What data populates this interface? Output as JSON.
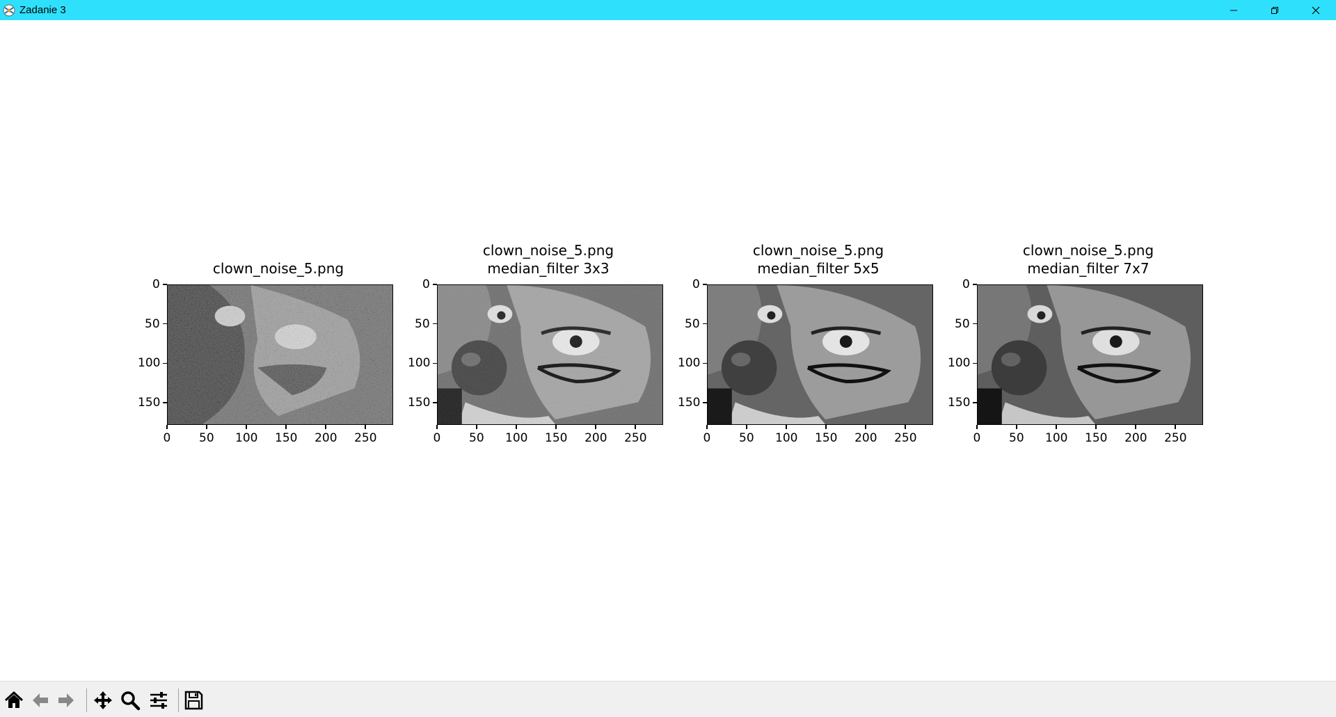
{
  "window": {
    "title": "Zadanie 3"
  },
  "subplots": [
    {
      "title_line1": "clown_noise_5.png",
      "title_line2": ""
    },
    {
      "title_line1": "clown_noise_5.png",
      "title_line2": "median_filter 3x3"
    },
    {
      "title_line1": "clown_noise_5.png",
      "title_line2": "median_filter 5x5"
    },
    {
      "title_line1": "clown_noise_5.png",
      "title_line2": "median_filter 7x7"
    }
  ],
  "chart_data": [
    {
      "type": "image",
      "title": "clown_noise_5.png",
      "xticks": [
        0,
        50,
        100,
        150,
        200,
        250
      ],
      "yticks": [
        0,
        50,
        100,
        150
      ],
      "xlim": [
        0,
        285
      ],
      "ylim": [
        178,
        0
      ]
    },
    {
      "type": "image",
      "title": "clown_noise_5.png\nmedian_filter 3x3",
      "xticks": [
        0,
        50,
        100,
        150,
        200,
        250
      ],
      "yticks": [
        0,
        50,
        100,
        150
      ],
      "xlim": [
        0,
        285
      ],
      "ylim": [
        178,
        0
      ]
    },
    {
      "type": "image",
      "title": "clown_noise_5.png\nmedian_filter 5x5",
      "xticks": [
        0,
        50,
        100,
        150,
        200,
        250
      ],
      "yticks": [
        0,
        50,
        100,
        150
      ],
      "xlim": [
        0,
        285
      ],
      "ylim": [
        178,
        0
      ]
    },
    {
      "type": "image",
      "title": "clown_noise_5.png\nmedian_filter 7x7",
      "xticks": [
        0,
        50,
        100,
        150,
        200,
        250
      ],
      "yticks": [
        0,
        50,
        100,
        150
      ],
      "xlim": [
        0,
        285
      ],
      "ylim": [
        178,
        0
      ]
    }
  ],
  "toolbar": {
    "buttons": [
      "home-icon",
      "back-arrow-icon",
      "forward-arrow-icon",
      "pan-icon",
      "zoom-icon",
      "configure-subplots-icon",
      "save-icon"
    ]
  }
}
